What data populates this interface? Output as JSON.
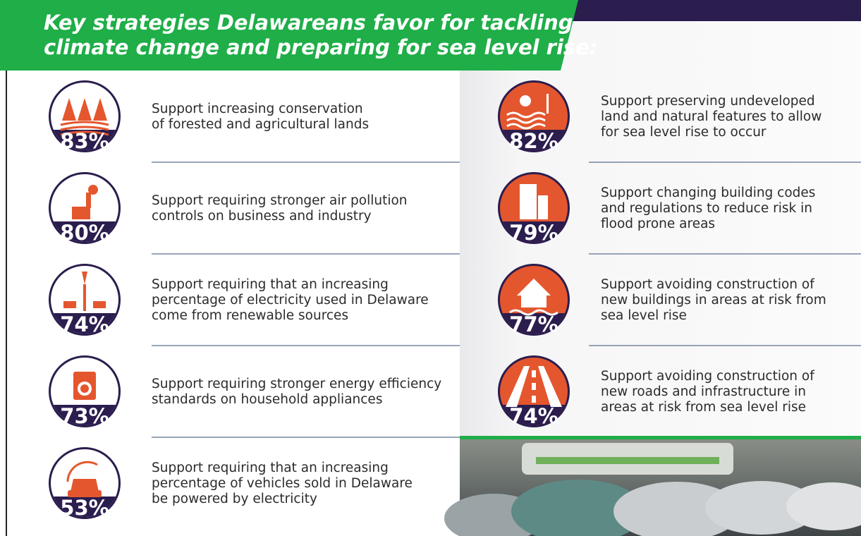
{
  "title_lines": [
    "Key strategies Delawareans favor for tackling",
    "climate change and preparing for sea level rise:"
  ],
  "left_items": [
    {
      "percent": "83%",
      "lines": [
        "Support increasing conservation",
        "of forested and agricultural lands"
      ]
    },
    {
      "percent": "80%",
      "lines": [
        "Support requiring stronger air pollution",
        "controls on business and industry"
      ]
    },
    {
      "percent": "74%",
      "lines": [
        "Support requiring that an increasing",
        "percentage of electricity used in Delaware",
        "come from renewable sources"
      ]
    },
    {
      "percent": "73%",
      "lines": [
        "Support requiring stronger energy efficiency",
        "standards on household appliances"
      ]
    },
    {
      "percent": "53%",
      "lines": [
        "Support requiring that an increasing",
        "percentage of vehicles sold in Delaware",
        "be powered by electricity"
      ]
    }
  ],
  "right_items": [
    {
      "percent": "82%",
      "lines": [
        "Support preserving undeveloped",
        "land and natural features to allow",
        "for sea level rise to occur"
      ]
    },
    {
      "percent": "79%",
      "lines": [
        "Support changing building codes",
        "and regulations to reduce risk in",
        "flood prone areas"
      ]
    },
    {
      "percent": "77%",
      "lines": [
        "Support avoiding construction of",
        "new buildings in areas at risk from",
        "sea level rise"
      ]
    },
    {
      "percent": "74%",
      "lines": [
        "Support avoiding construction of",
        "new roads and infrastructure in",
        "areas at risk from sea level rise"
      ]
    }
  ]
}
